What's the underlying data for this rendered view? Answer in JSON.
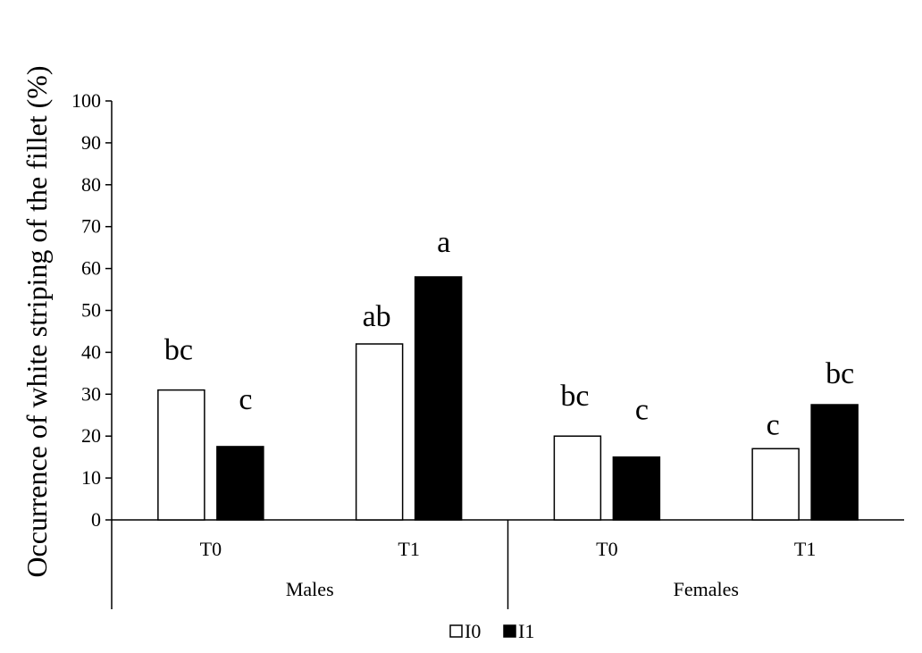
{
  "chart_data": {
    "type": "bar",
    "ylabel": "Occurrence of white striping of the fillet (%)",
    "ylim": [
      0,
      100
    ],
    "yticks": [
      0,
      10,
      20,
      30,
      40,
      50,
      60,
      70,
      80,
      90,
      100
    ],
    "groups": [
      {
        "label": "Males",
        "categories": [
          "T0",
          "T1"
        ]
      },
      {
        "label": "Females",
        "categories": [
          "T0",
          "T1"
        ]
      }
    ],
    "series": [
      {
        "name": "I0",
        "color": "#ffffff",
        "values": [
          31,
          42,
          20,
          17
        ],
        "letters": [
          "bc",
          "ab",
          "bc",
          "c"
        ]
      },
      {
        "name": "I1",
        "color": "#000000",
        "values": [
          17.5,
          58,
          15,
          27.5
        ],
        "letters": [
          "c",
          "a",
          "c",
          "bc"
        ]
      }
    ],
    "legend": "bottom",
    "grid": false
  }
}
